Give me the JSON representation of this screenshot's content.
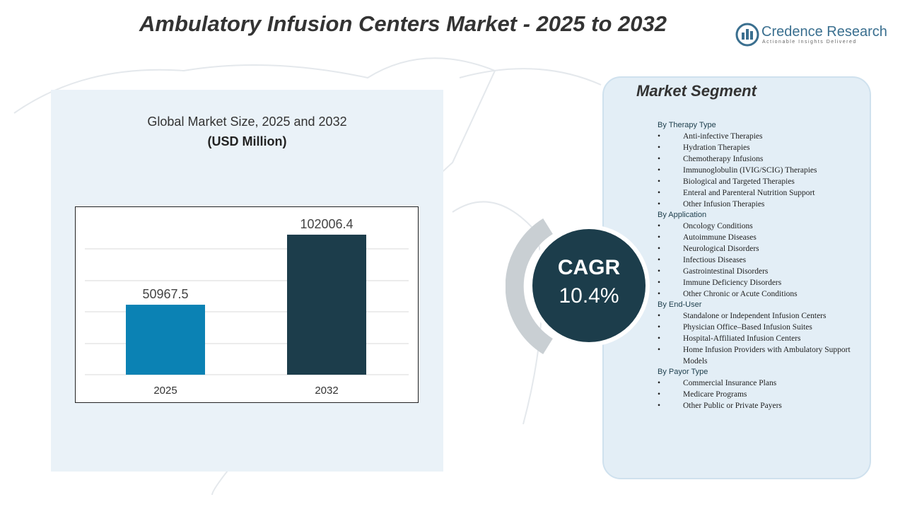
{
  "header": {
    "title": "Ambulatory Infusion Centers Market - 2025 to 2032",
    "logo_name": "Credence Research",
    "logo_tagline": "Actionable Insights Delivered"
  },
  "chart_data": {
    "type": "bar",
    "title": "Global Market Size, 2025 and 2032",
    "subtitle": "(USD Million)",
    "categories": [
      "2025",
      "2032"
    ],
    "values": [
      50967.5,
      102006.4
    ],
    "colors": [
      "#0b82b4",
      "#1c3d4b"
    ],
    "ylim": [
      0,
      120000
    ]
  },
  "cagr": {
    "label": "CAGR",
    "value": "10.4%"
  },
  "segments": {
    "title": "Market Segment",
    "groups": [
      {
        "heading": "By Therapy Type",
        "items": [
          "Anti-infective Therapies",
          "Hydration Therapies",
          "Chemotherapy Infusions",
          "Immunoglobulin (IVIG/SCIG)  Therapies",
          "Biological  and Targeted Therapies",
          "Enteral  and Parenteral Nutrition Support",
          "Other Infusion Therapies"
        ]
      },
      {
        "heading": "By Application",
        "items": [
          "Oncology Conditions",
          "Autoimmune  Diseases",
          "Neurological Disorders",
          "Infectious Diseases",
          "Gastrointestinal Disorders",
          "Immune  Deficiency Disorders",
          "Other Chronic or Acute Conditions"
        ]
      },
      {
        "heading": "By End-User",
        "items": [
          "Standalone or Independent Infusion Centers",
          "Physician Office–Based  Infusion Suites",
          "Hospital-Affiliated  Infusion Centers",
          "Home  Infusion Providers with Ambulatory Support Models"
        ]
      },
      {
        "heading": "By Payor Type",
        "items": [
          "Commercial  Insurance Plans",
          "Medicare Programs",
          "Other Public or Private Payers"
        ]
      }
    ]
  }
}
